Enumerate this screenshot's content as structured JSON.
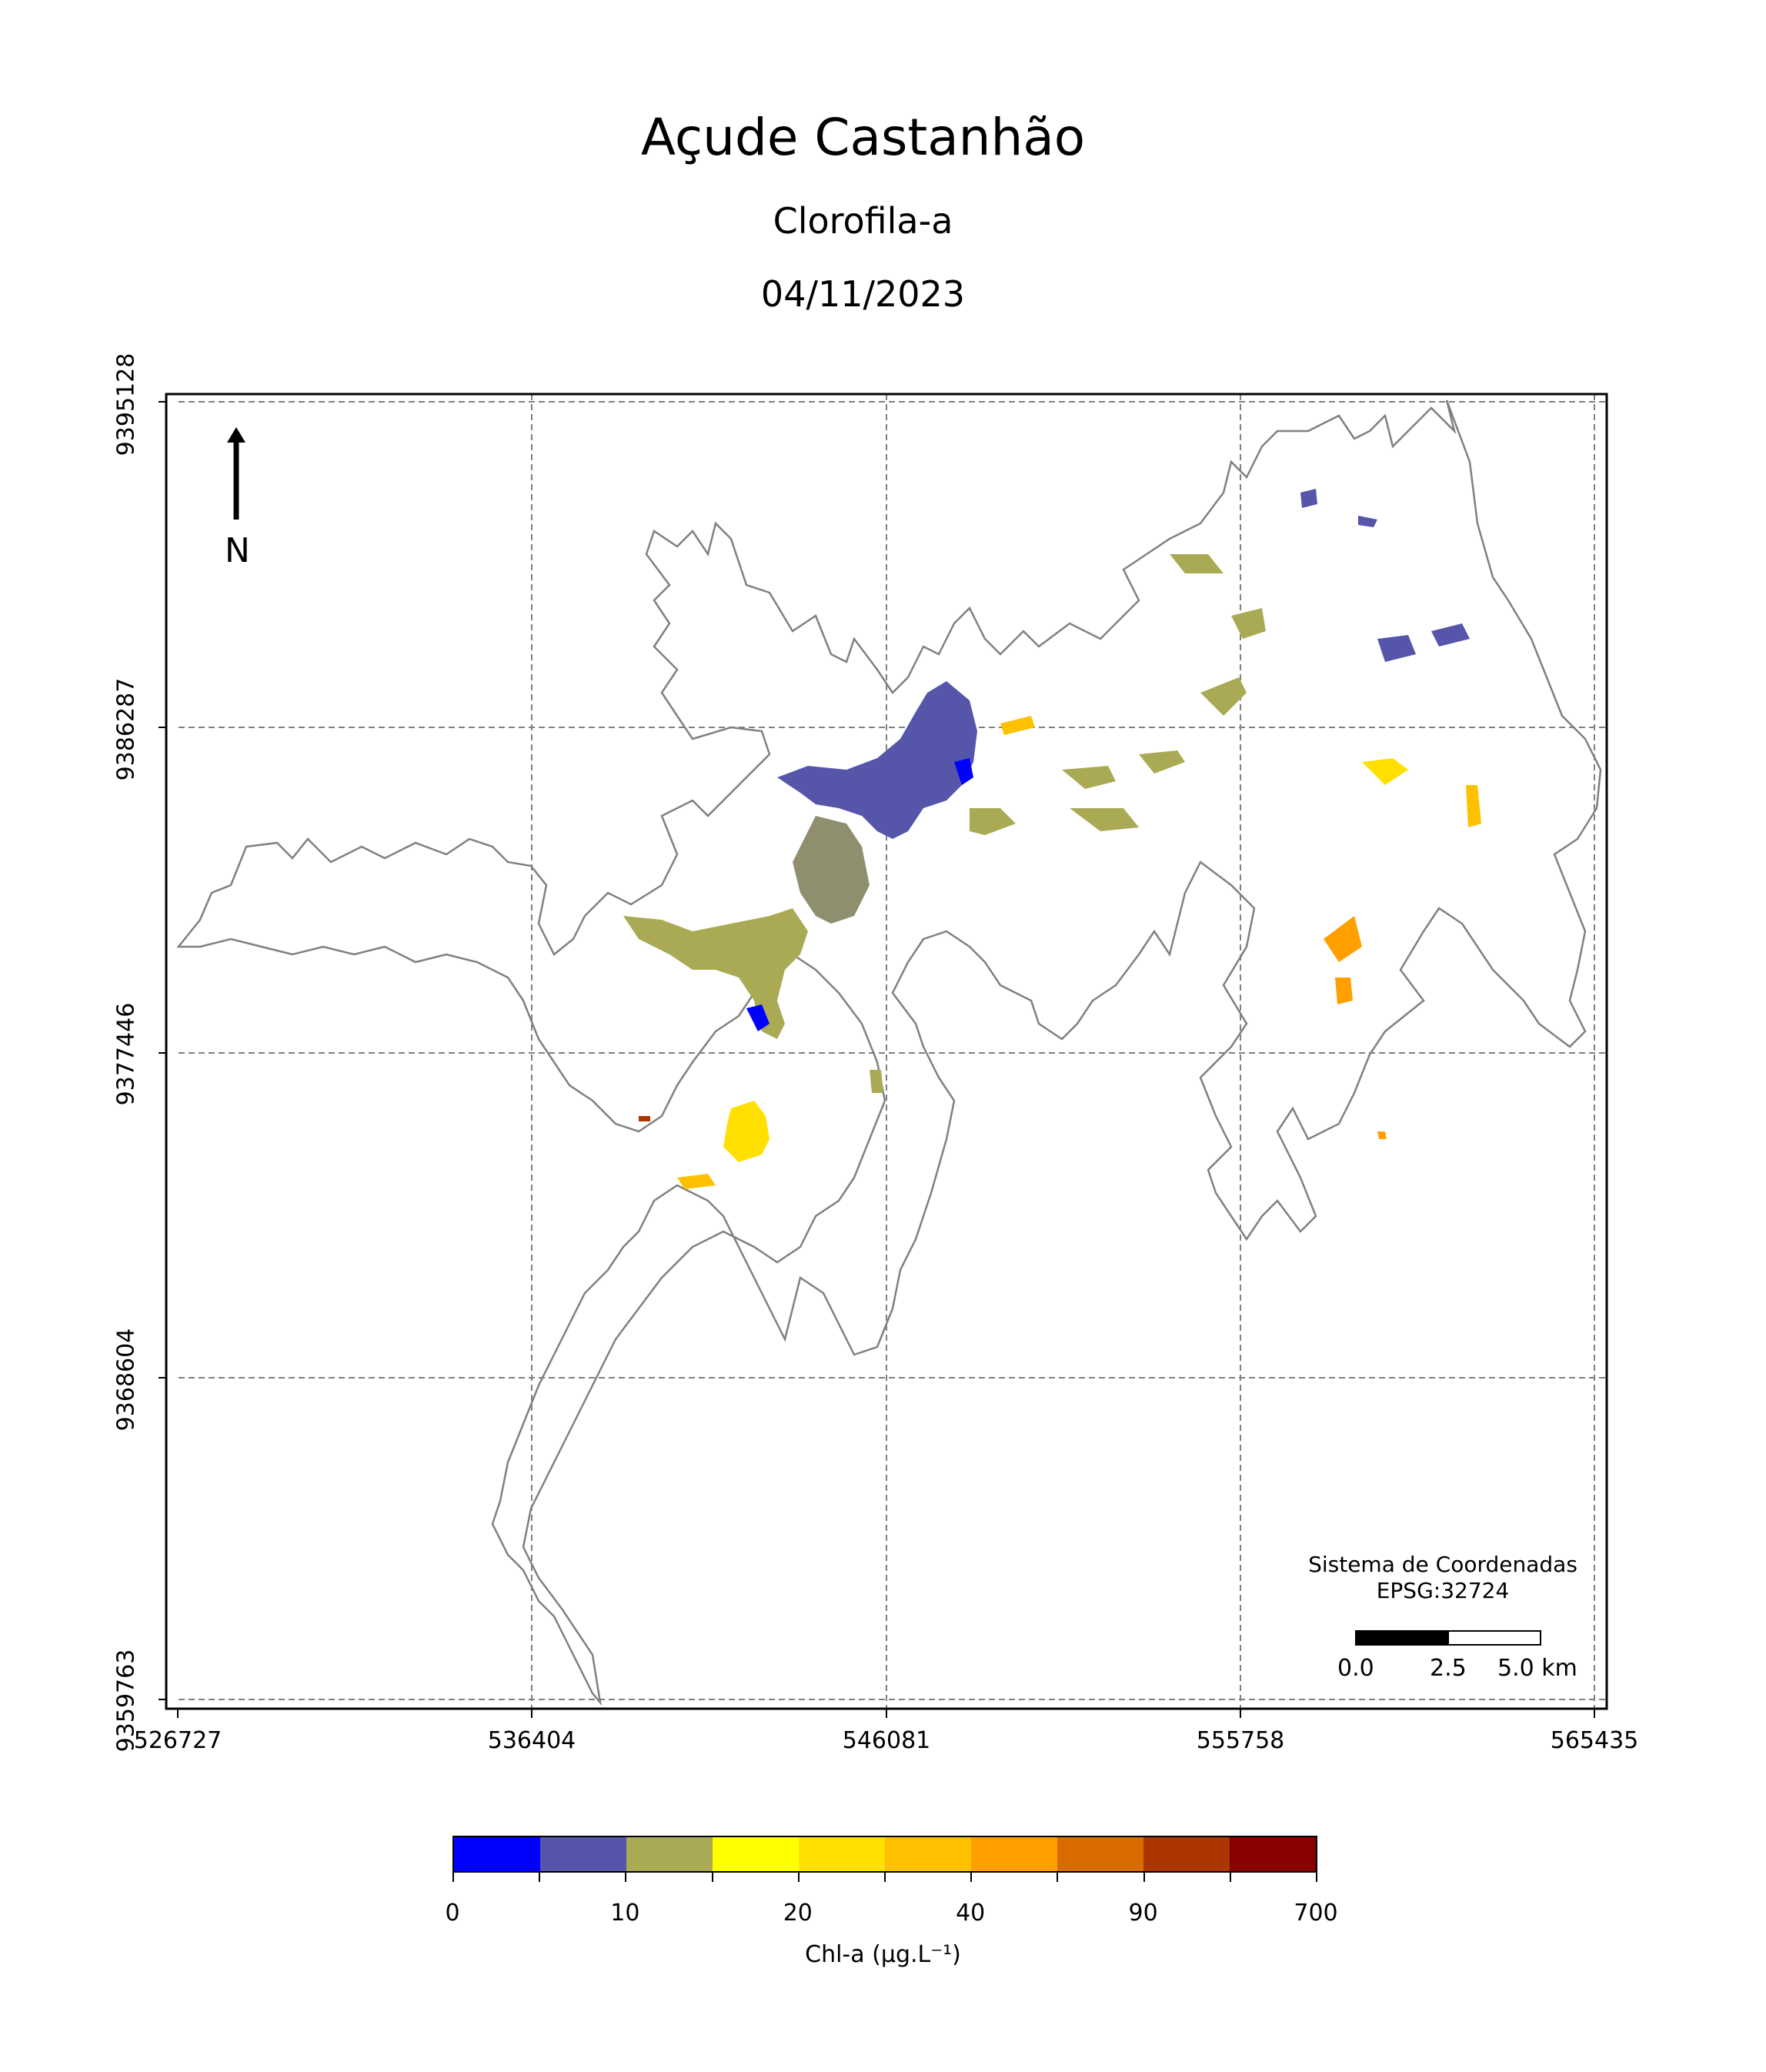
{
  "title": "Açude Castanhão",
  "subtitle": "Clorofila-a",
  "date": "04/11/2023",
  "north_label": "N",
  "y_ticks": [
    "9395128",
    "9386287",
    "9377446",
    "9368604",
    "9359763"
  ],
  "x_ticks": [
    "526727",
    "536404",
    "546081",
    "555758",
    "565435"
  ],
  "crs": {
    "line1": "Sistema de Coordenadas",
    "line2": "EPSG:32724"
  },
  "scalebar": {
    "labels": [
      "0.0",
      "2.5",
      "5.0 km"
    ]
  },
  "legend": {
    "label": "Chl-a (μg.L⁻¹)",
    "tick_labels": [
      "0",
      "10",
      "20",
      "40",
      "90",
      "700"
    ],
    "colors": [
      "#0000ff",
      "#5555aa",
      "#aaaa55",
      "#ffff00",
      "#ffe000",
      "#ffc000",
      "#ffa000",
      "#d86c00",
      "#ad3500",
      "#8b0000"
    ]
  },
  "colors": {
    "outline": "#808080",
    "grid": "#808080"
  }
}
